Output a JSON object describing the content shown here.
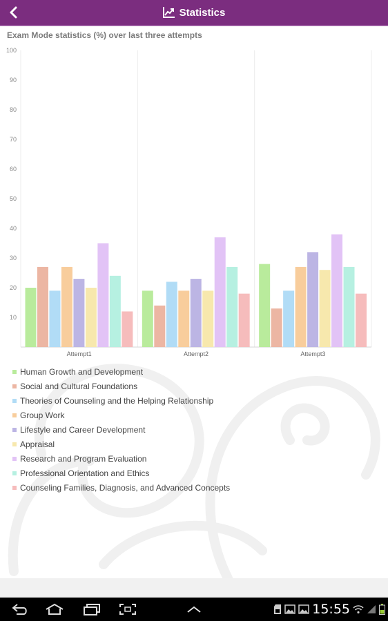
{
  "header": {
    "title": "Statistics",
    "back_icon": "chevron-left-icon",
    "title_icon": "chart-line-up-icon"
  },
  "chart_title": "Exam Mode statistics (%) over last three attempts",
  "chart_data": {
    "type": "bar",
    "title": "Exam Mode statistics (%) over last three attempts",
    "categories": [
      "Attempt1",
      "Attempt2",
      "Attempt3"
    ],
    "ylim": [
      0,
      100
    ],
    "yticks": [
      10,
      20,
      30,
      40,
      50,
      60,
      70,
      80,
      90,
      100
    ],
    "grid": "vertical category separators",
    "legend_position": "bottom",
    "series": [
      {
        "name": "Human Growth and Development",
        "color": "#b9eb9c",
        "values": [
          20,
          19,
          28
        ]
      },
      {
        "name": "Social and Cultural Foundations",
        "color": "#ecb6a3",
        "values": [
          27,
          14,
          13
        ]
      },
      {
        "name": "Theories of Counseling and the Helping Relationship",
        "color": "#b1dcf6",
        "values": [
          19,
          22,
          19
        ]
      },
      {
        "name": "Group Work",
        "color": "#f8cd9c",
        "values": [
          27,
          19,
          27
        ]
      },
      {
        "name": "Lifestyle and Career Development",
        "color": "#bcb5e4",
        "values": [
          23,
          23,
          32
        ]
      },
      {
        "name": "Appraisal",
        "color": "#f7e8ad",
        "values": [
          20,
          19,
          26
        ]
      },
      {
        "name": "Research and Program Evaluation",
        "color": "#e2c3f6",
        "values": [
          35,
          37,
          38
        ]
      },
      {
        "name": "Professional Orientation and Ethics",
        "color": "#b6f0e1",
        "values": [
          24,
          27,
          27
        ]
      },
      {
        "name": "Counseling Families, Diagnosis, and Advanced Concepts",
        "color": "#f6bcbc",
        "values": [
          12,
          18,
          18
        ]
      }
    ]
  },
  "navbar": {
    "time": "15:55",
    "icons": [
      "back-icon",
      "home-icon",
      "recent-apps-icon",
      "screenshot-icon",
      "menu-up-icon"
    ],
    "status_icons": [
      "sd-card-icon",
      "gallery-icon",
      "gallery-icon",
      "wifi-icon",
      "signal-icon",
      "battery-icon"
    ]
  }
}
